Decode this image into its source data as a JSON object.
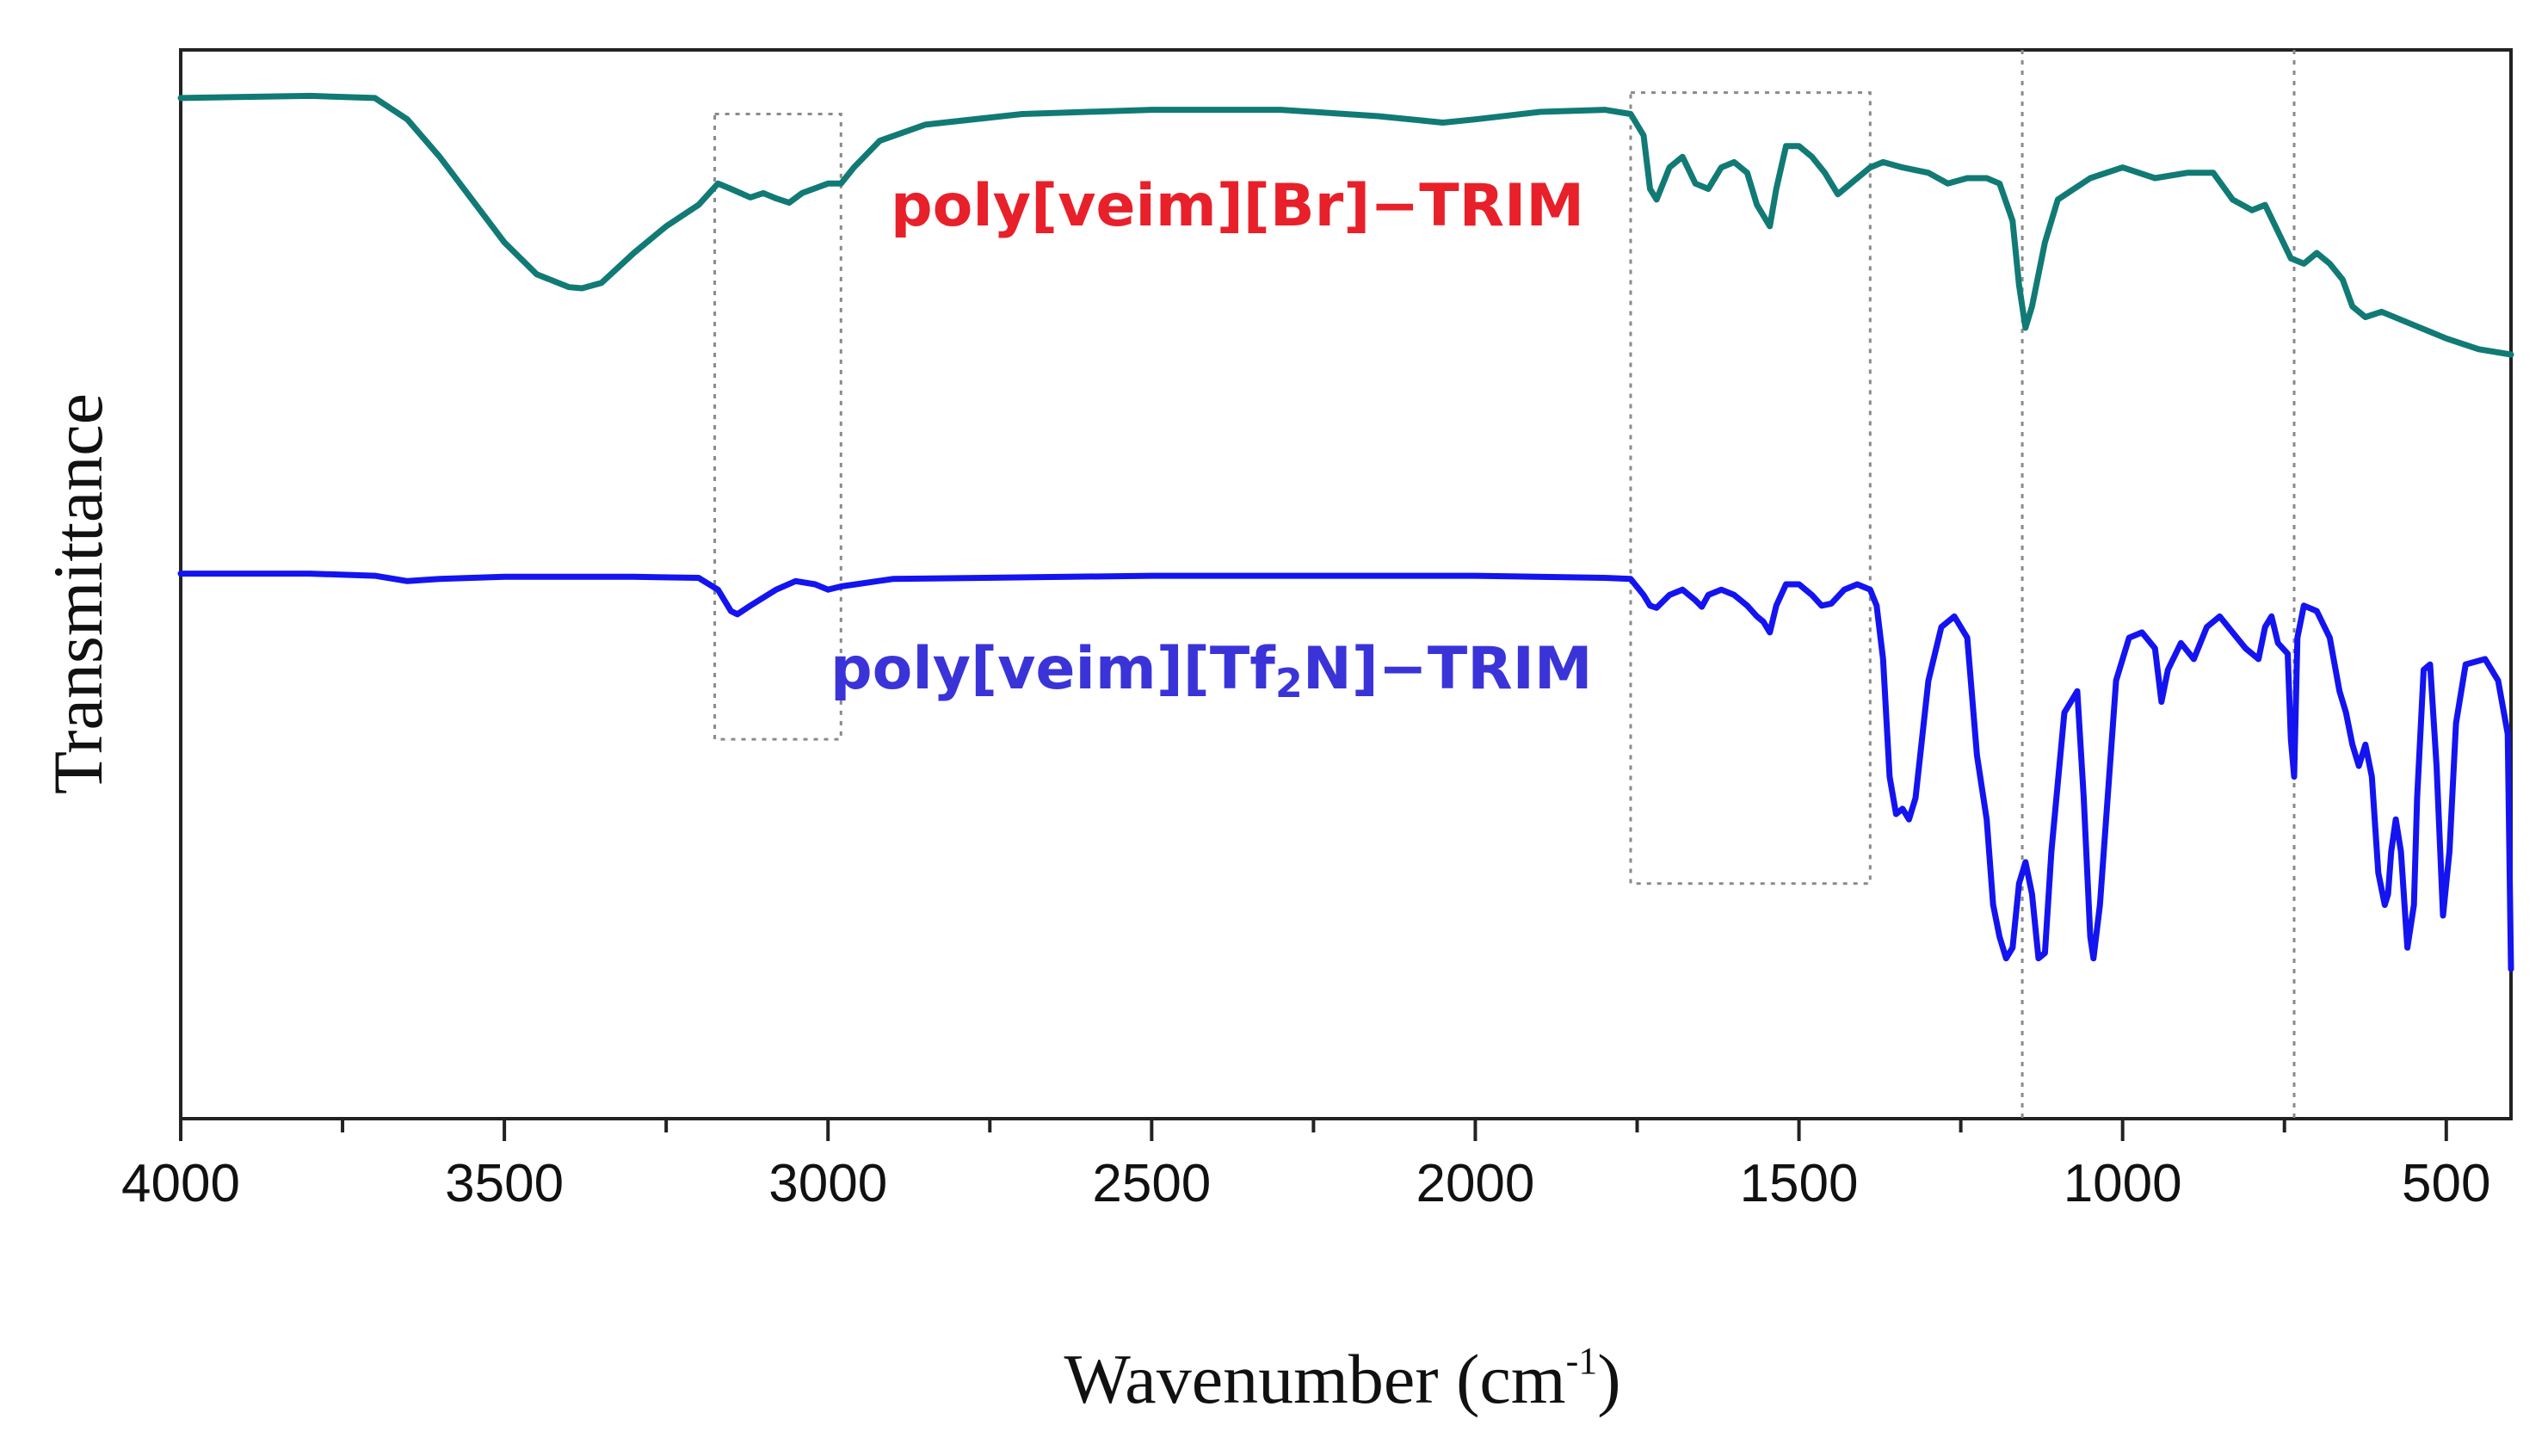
{
  "chart_data": {
    "type": "line",
    "xlabel": "Wavenumber (cm",
    "xlabel_sup": "-1",
    "xlabel_close": ")",
    "ylabel": "Transmittance",
    "xlim": [
      4000,
      400
    ],
    "ylim": [
      0,
      1
    ],
    "x_ticks": [
      4000,
      3500,
      3000,
      2500,
      2000,
      1500,
      1000,
      500
    ],
    "x_tick_labels": [
      "4000",
      "3500",
      "3000",
      "2500",
      "2000",
      "1500",
      "1000",
      "500"
    ],
    "x_minor_step": 250,
    "grid": false,
    "y_ticks": false,
    "series": [
      {
        "name": "poly[veim][Br]-TRIM",
        "label_main": "poly[veim][Br]−TRIM",
        "color": "#117a75",
        "label_color": "#e8202a",
        "points": [
          [
            4000,
            0.955
          ],
          [
            3800,
            0.957
          ],
          [
            3700,
            0.955
          ],
          [
            3650,
            0.935
          ],
          [
            3600,
            0.9
          ],
          [
            3550,
            0.86
          ],
          [
            3500,
            0.82
          ],
          [
            3450,
            0.79
          ],
          [
            3400,
            0.778
          ],
          [
            3380,
            0.777
          ],
          [
            3350,
            0.782
          ],
          [
            3300,
            0.81
          ],
          [
            3250,
            0.835
          ],
          [
            3200,
            0.855
          ],
          [
            3170,
            0.875
          ],
          [
            3150,
            0.87
          ],
          [
            3120,
            0.862
          ],
          [
            3100,
            0.866
          ],
          [
            3080,
            0.861
          ],
          [
            3060,
            0.857
          ],
          [
            3040,
            0.866
          ],
          [
            3000,
            0.875
          ],
          [
            2980,
            0.875
          ],
          [
            2960,
            0.89
          ],
          [
            2920,
            0.915
          ],
          [
            2850,
            0.93
          ],
          [
            2700,
            0.94
          ],
          [
            2500,
            0.944
          ],
          [
            2300,
            0.944
          ],
          [
            2150,
            0.938
          ],
          [
            2050,
            0.932
          ],
          [
            2000,
            0.935
          ],
          [
            1900,
            0.942
          ],
          [
            1800,
            0.944
          ],
          [
            1760,
            0.94
          ],
          [
            1740,
            0.92
          ],
          [
            1730,
            0.87
          ],
          [
            1720,
            0.86
          ],
          [
            1700,
            0.89
          ],
          [
            1680,
            0.9
          ],
          [
            1660,
            0.875
          ],
          [
            1640,
            0.87
          ],
          [
            1620,
            0.89
          ],
          [
            1600,
            0.895
          ],
          [
            1580,
            0.885
          ],
          [
            1565,
            0.855
          ],
          [
            1555,
            0.845
          ],
          [
            1545,
            0.835
          ],
          [
            1535,
            0.87
          ],
          [
            1520,
            0.91
          ],
          [
            1500,
            0.91
          ],
          [
            1480,
            0.9
          ],
          [
            1460,
            0.885
          ],
          [
            1440,
            0.865
          ],
          [
            1430,
            0.87
          ],
          [
            1410,
            0.88
          ],
          [
            1390,
            0.89
          ],
          [
            1370,
            0.895
          ],
          [
            1340,
            0.89
          ],
          [
            1300,
            0.885
          ],
          [
            1270,
            0.875
          ],
          [
            1240,
            0.88
          ],
          [
            1210,
            0.88
          ],
          [
            1190,
            0.875
          ],
          [
            1170,
            0.84
          ],
          [
            1160,
            0.78
          ],
          [
            1150,
            0.74
          ],
          [
            1140,
            0.76
          ],
          [
            1120,
            0.82
          ],
          [
            1100,
            0.86
          ],
          [
            1050,
            0.88
          ],
          [
            1000,
            0.89
          ],
          [
            950,
            0.88
          ],
          [
            900,
            0.885
          ],
          [
            860,
            0.885
          ],
          [
            830,
            0.86
          ],
          [
            800,
            0.85
          ],
          [
            780,
            0.855
          ],
          [
            760,
            0.83
          ],
          [
            740,
            0.805
          ],
          [
            720,
            0.8
          ],
          [
            700,
            0.81
          ],
          [
            680,
            0.8
          ],
          [
            660,
            0.785
          ],
          [
            645,
            0.76
          ],
          [
            625,
            0.75
          ],
          [
            600,
            0.755
          ],
          [
            560,
            0.745
          ],
          [
            500,
            0.73
          ],
          [
            450,
            0.72
          ],
          [
            400,
            0.715
          ]
        ]
      },
      {
        "name": "poly[veim][Tf2N]-TRIM",
        "label_main": "poly[veim][Tf",
        "label_sub": "2",
        "label_end": "N]−TRIM",
        "color": "#1414f0",
        "label_color": "#3a34d8",
        "points": [
          [
            4000,
            0.51
          ],
          [
            3800,
            0.51
          ],
          [
            3700,
            0.508
          ],
          [
            3650,
            0.503
          ],
          [
            3600,
            0.505
          ],
          [
            3500,
            0.507
          ],
          [
            3400,
            0.507
          ],
          [
            3300,
            0.507
          ],
          [
            3200,
            0.506
          ],
          [
            3170,
            0.495
          ],
          [
            3150,
            0.475
          ],
          [
            3140,
            0.472
          ],
          [
            3120,
            0.48
          ],
          [
            3080,
            0.495
          ],
          [
            3050,
            0.503
          ],
          [
            3020,
            0.5
          ],
          [
            3000,
            0.495
          ],
          [
            2980,
            0.498
          ],
          [
            2900,
            0.505
          ],
          [
            2500,
            0.508
          ],
          [
            2000,
            0.508
          ],
          [
            1800,
            0.506
          ],
          [
            1760,
            0.505
          ],
          [
            1740,
            0.49
          ],
          [
            1730,
            0.48
          ],
          [
            1720,
            0.478
          ],
          [
            1700,
            0.49
          ],
          [
            1680,
            0.495
          ],
          [
            1660,
            0.485
          ],
          [
            1650,
            0.479
          ],
          [
            1640,
            0.49
          ],
          [
            1620,
            0.495
          ],
          [
            1600,
            0.49
          ],
          [
            1580,
            0.48
          ],
          [
            1565,
            0.47
          ],
          [
            1555,
            0.465
          ],
          [
            1545,
            0.455
          ],
          [
            1535,
            0.48
          ],
          [
            1520,
            0.5
          ],
          [
            1500,
            0.5
          ],
          [
            1480,
            0.49
          ],
          [
            1465,
            0.48
          ],
          [
            1450,
            0.482
          ],
          [
            1430,
            0.495
          ],
          [
            1410,
            0.5
          ],
          [
            1390,
            0.495
          ],
          [
            1380,
            0.48
          ],
          [
            1370,
            0.43
          ],
          [
            1360,
            0.32
          ],
          [
            1350,
            0.285
          ],
          [
            1340,
            0.29
          ],
          [
            1330,
            0.28
          ],
          [
            1320,
            0.3
          ],
          [
            1300,
            0.41
          ],
          [
            1280,
            0.46
          ],
          [
            1260,
            0.47
          ],
          [
            1240,
            0.45
          ],
          [
            1225,
            0.34
          ],
          [
            1210,
            0.28
          ],
          [
            1200,
            0.2
          ],
          [
            1190,
            0.17
          ],
          [
            1180,
            0.15
          ],
          [
            1170,
            0.16
          ],
          [
            1160,
            0.22
          ],
          [
            1150,
            0.24
          ],
          [
            1140,
            0.21
          ],
          [
            1130,
            0.15
          ],
          [
            1120,
            0.155
          ],
          [
            1110,
            0.25
          ],
          [
            1090,
            0.38
          ],
          [
            1070,
            0.4
          ],
          [
            1060,
            0.3
          ],
          [
            1050,
            0.17
          ],
          [
            1045,
            0.15
          ],
          [
            1035,
            0.2
          ],
          [
            1010,
            0.41
          ],
          [
            990,
            0.45
          ],
          [
            970,
            0.455
          ],
          [
            950,
            0.44
          ],
          [
            940,
            0.39
          ],
          [
            930,
            0.42
          ],
          [
            910,
            0.445
          ],
          [
            890,
            0.43
          ],
          [
            870,
            0.46
          ],
          [
            850,
            0.47
          ],
          [
            830,
            0.455
          ],
          [
            810,
            0.44
          ],
          [
            790,
            0.43
          ],
          [
            780,
            0.46
          ],
          [
            770,
            0.47
          ],
          [
            760,
            0.445
          ],
          [
            745,
            0.435
          ],
          [
            740,
            0.355
          ],
          [
            735,
            0.32
          ],
          [
            730,
            0.45
          ],
          [
            720,
            0.48
          ],
          [
            700,
            0.475
          ],
          [
            680,
            0.45
          ],
          [
            665,
            0.4
          ],
          [
            655,
            0.38
          ],
          [
            645,
            0.35
          ],
          [
            635,
            0.33
          ],
          [
            625,
            0.35
          ],
          [
            615,
            0.32
          ],
          [
            605,
            0.23
          ],
          [
            595,
            0.2
          ],
          [
            590,
            0.21
          ],
          [
            585,
            0.25
          ],
          [
            578,
            0.28
          ],
          [
            570,
            0.25
          ],
          [
            560,
            0.16
          ],
          [
            550,
            0.2
          ],
          [
            545,
            0.3
          ],
          [
            535,
            0.42
          ],
          [
            525,
            0.425
          ],
          [
            515,
            0.33
          ],
          [
            505,
            0.19
          ],
          [
            495,
            0.25
          ],
          [
            485,
            0.37
          ],
          [
            470,
            0.425
          ],
          [
            440,
            0.43
          ],
          [
            420,
            0.41
          ],
          [
            405,
            0.36
          ],
          [
            400,
            0.14
          ]
        ]
      }
    ],
    "annotations": {
      "dashed_boxes": [
        {
          "x0": 3175,
          "x1": 2980,
          "y0": 0.355,
          "y1": 0.94
        },
        {
          "x0": 1760,
          "x1": 1390,
          "y0": 0.22,
          "y1": 0.96
        }
      ],
      "dashed_vlines": [
        1155,
        735
      ]
    }
  }
}
